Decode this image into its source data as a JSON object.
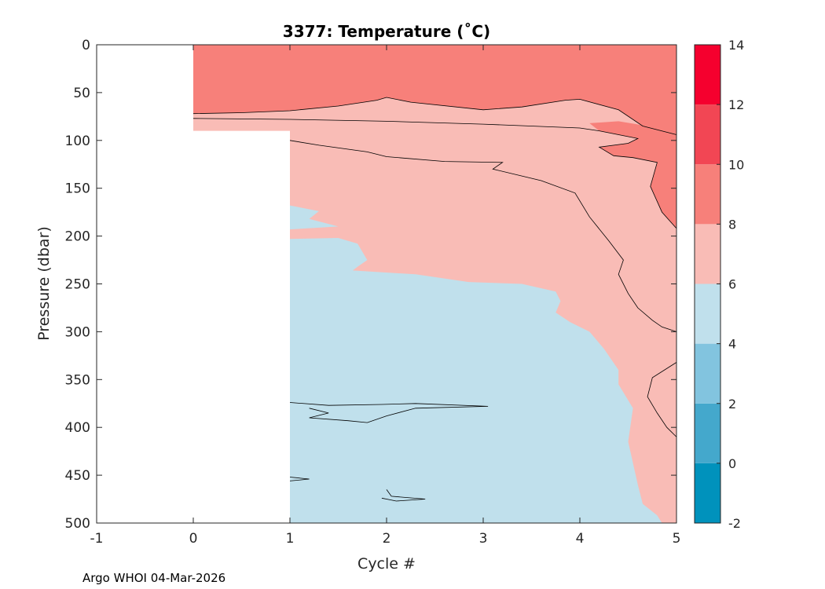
{
  "chart_data": {
    "type": "heatmap",
    "title": "3377:  Temperature (˚C)",
    "xlabel": "Cycle #",
    "ylabel": "Pressure (dbar)",
    "xlim": [
      -1,
      5
    ],
    "ylim": [
      0,
      500
    ],
    "y_reversed": true,
    "x_ticks": [
      "-1",
      "0",
      "1",
      "2",
      "3",
      "4",
      "5"
    ],
    "y_ticks": [
      "0",
      "50",
      "100",
      "150",
      "200",
      "250",
      "300",
      "350",
      "400",
      "450",
      "500"
    ],
    "colorbar": {
      "ticks": [
        "-2",
        "0",
        "2",
        "4",
        "6",
        "8",
        "10",
        "12",
        "14"
      ],
      "levels": [
        {
          "range": [
            -2,
            0
          ],
          "color": "#0092BC"
        },
        {
          "range": [
            0,
            2
          ],
          "color": "#44A8CC"
        },
        {
          "range": [
            2,
            4
          ],
          "color": "#82C4DF"
        },
        {
          "range": [
            4,
            6
          ],
          "color": "#C0E0EC"
        },
        {
          "range": [
            6,
            8
          ],
          "color": "#F9BCB6"
        },
        {
          "range": [
            8,
            10
          ],
          "color": "#F7807A"
        },
        {
          "range": [
            10,
            12
          ],
          "color": "#F24654"
        },
        {
          "range": [
            12,
            14
          ],
          "color": "#F5002E"
        }
      ]
    },
    "contour_regions": [
      {
        "level": "8-10",
        "points": [
          [
            0,
            0
          ],
          [
            5,
            0
          ],
          [
            5,
            94
          ],
          [
            4.65,
            85
          ],
          [
            4.4,
            68
          ],
          [
            4.0,
            57
          ],
          [
            3.85,
            58
          ],
          [
            3.4,
            65
          ],
          [
            3.0,
            68
          ],
          [
            2.25,
            60
          ],
          [
            2.0,
            55
          ],
          [
            1.9,
            58
          ],
          [
            1.5,
            64
          ],
          [
            1.0,
            69
          ],
          [
            0.5,
            71
          ],
          [
            0,
            72
          ]
        ]
      },
      {
        "level": "8-10",
        "points": [
          [
            5,
            94
          ],
          [
            5,
            192
          ],
          [
            4.85,
            175
          ],
          [
            4.73,
            148
          ],
          [
            4.8,
            123
          ],
          [
            4.55,
            118
          ],
          [
            4.35,
            116
          ],
          [
            4.2,
            107
          ],
          [
            4.5,
            103
          ],
          [
            4.6,
            98
          ],
          [
            4.4,
            94
          ],
          [
            4.2,
            90
          ],
          [
            4.1,
            82
          ],
          [
            4.4,
            80
          ],
          [
            4.7,
            85
          ]
        ]
      },
      {
        "level": "4-6",
        "points": [
          [
            1,
            168
          ],
          [
            1.3,
            174
          ],
          [
            1.2,
            182
          ],
          [
            1.5,
            190
          ],
          [
            1.0,
            193
          ]
        ]
      },
      {
        "level": "4-6",
        "points": [
          [
            1,
            203
          ],
          [
            1.5,
            202
          ],
          [
            1.7,
            208
          ],
          [
            1.8,
            225
          ],
          [
            1.7,
            232
          ],
          [
            1.65,
            236
          ],
          [
            2.3,
            240
          ],
          [
            2.85,
            248
          ],
          [
            3.4,
            250
          ],
          [
            3.75,
            258
          ],
          [
            3.8,
            268
          ],
          [
            3.75,
            280
          ],
          [
            3.9,
            290
          ],
          [
            4.1,
            300
          ],
          [
            4.25,
            318
          ],
          [
            4.4,
            340
          ],
          [
            4.4,
            355
          ],
          [
            4.55,
            380
          ],
          [
            4.5,
            415
          ],
          [
            4.6,
            460
          ],
          [
            4.65,
            480
          ],
          [
            4.8,
            492
          ],
          [
            4.85,
            500
          ],
          [
            1,
            500
          ]
        ]
      }
    ],
    "contour_lines": [
      {
        "level": 8,
        "points": [
          [
            0,
            72
          ],
          [
            0.5,
            71
          ],
          [
            1.0,
            69
          ],
          [
            1.5,
            64
          ],
          [
            1.9,
            58
          ],
          [
            2.0,
            55
          ],
          [
            2.25,
            60
          ],
          [
            3.0,
            68
          ],
          [
            3.4,
            65
          ],
          [
            3.85,
            58
          ],
          [
            4.0,
            57
          ],
          [
            4.4,
            68
          ],
          [
            4.65,
            85
          ],
          [
            5,
            94
          ]
        ]
      },
      {
        "level": 8,
        "points": [
          [
            0,
            77
          ],
          [
            1.0,
            78
          ],
          [
            2.0,
            80
          ],
          [
            3.0,
            83
          ],
          [
            4.0,
            87
          ],
          [
            4.2,
            90
          ],
          [
            4.4,
            94
          ],
          [
            4.6,
            98
          ],
          [
            4.5,
            103
          ],
          [
            4.2,
            107
          ],
          [
            4.35,
            116
          ],
          [
            4.55,
            118
          ],
          [
            4.8,
            123
          ],
          [
            4.73,
            148
          ],
          [
            4.85,
            175
          ],
          [
            5,
            192
          ]
        ]
      },
      {
        "level": 6,
        "points": [
          [
            1,
            100
          ],
          [
            1.3,
            105
          ],
          [
            1.8,
            112
          ],
          [
            2.0,
            117
          ],
          [
            2.6,
            122
          ],
          [
            3.2,
            123
          ],
          [
            3.1,
            130
          ],
          [
            3.6,
            142
          ],
          [
            3.95,
            155
          ],
          [
            4.1,
            180
          ],
          [
            4.3,
            205
          ],
          [
            4.45,
            225
          ],
          [
            4.4,
            240
          ],
          [
            4.5,
            260
          ],
          [
            4.6,
            275
          ],
          [
            4.75,
            288
          ],
          [
            4.85,
            295
          ],
          [
            5,
            300
          ]
        ]
      },
      {
        "level": 6,
        "points": [
          [
            5,
            332
          ],
          [
            4.75,
            348
          ],
          [
            4.7,
            368
          ],
          [
            4.8,
            385
          ],
          [
            4.9,
            400
          ],
          [
            5,
            410
          ]
        ]
      },
      {
        "level": 6,
        "points": [
          [
            1,
            374
          ],
          [
            1.4,
            377
          ],
          [
            1.95,
            376
          ],
          [
            2.3,
            375
          ],
          [
            3.05,
            378
          ],
          [
            2.3,
            380
          ],
          [
            2.0,
            388
          ],
          [
            1.8,
            395
          ],
          [
            1.6,
            393
          ],
          [
            1.2,
            390
          ],
          [
            1.4,
            385
          ],
          [
            1.2,
            380
          ]
        ]
      },
      {
        "level": 6,
        "points": [
          [
            1,
            452
          ],
          [
            1.2,
            454
          ],
          [
            1.0,
            456
          ]
        ]
      },
      {
        "level": 6,
        "points": [
          [
            2.0,
            465
          ],
          [
            2.05,
            472
          ],
          [
            2.4,
            475
          ],
          [
            2.1,
            477
          ],
          [
            1.95,
            474
          ]
        ]
      }
    ]
  },
  "footer": {
    "text": "Argo WHOI 04-Mar-2026"
  }
}
